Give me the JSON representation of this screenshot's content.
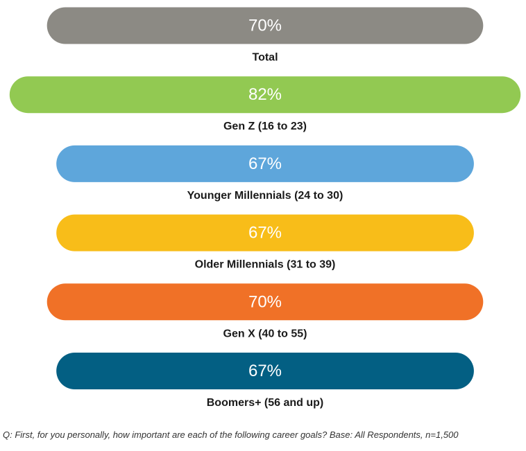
{
  "chart_data": {
    "type": "bar",
    "orientation": "horizontal",
    "categories": [
      "Total",
      "Gen Z (16 to 23)",
      "Younger Millennials (24 to 30)",
      "Older Millennials (31 to 39)",
      "Gen X (40 to 55)",
      "Boomers+ (56 and up)"
    ],
    "values": [
      70,
      82,
      67,
      67,
      70,
      67
    ],
    "value_labels": [
      "70%",
      "82%",
      "67%",
      "67%",
      "70%",
      "67%"
    ],
    "colors": [
      "#8c8a84",
      "#92c952",
      "#5ea6db",
      "#f8bd19",
      "#f07127",
      "#035f83"
    ],
    "unit": "%",
    "xlim": [
      0,
      100
    ],
    "grid": false,
    "title": "",
    "xlabel": "",
    "ylabel": ""
  },
  "footnote": "Q: First, for you personally, how important are each of the following career goals? Base: All Respondents, n=1,500"
}
